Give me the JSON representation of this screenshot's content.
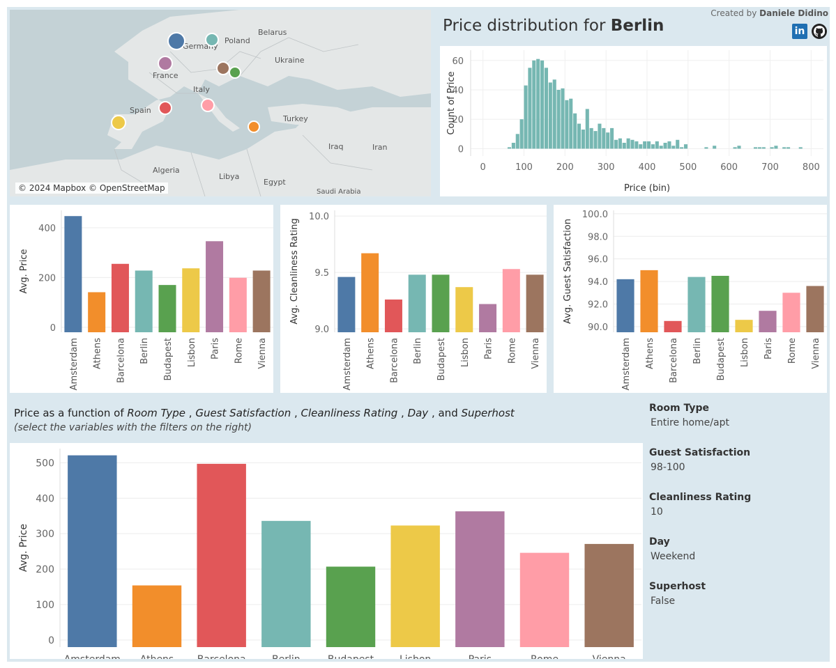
{
  "colors": {
    "Amsterdam": "#4e79a7",
    "Athens": "#f28e2b",
    "Barcelona": "#e15759",
    "Berlin": "#76b7b2",
    "Budapest": "#59a14f",
    "Lisbon": "#edc948",
    "Paris": "#b07aa1",
    "Rome": "#ff9da7",
    "Vienna": "#9c755f",
    "hist": "#76b7b2"
  },
  "map": {
    "attribution": "© 2024 Mapbox © OpenStreetMap",
    "labels": [
      "Poland",
      "Belarus",
      "Ukraine",
      "Germany",
      "France",
      "Italy",
      "Spain",
      "Turkey",
      "Iraq",
      "Iran",
      "Algeria",
      "Libya",
      "Egypt",
      "Saudi Arabia"
    ],
    "markers": [
      {
        "city": "Amsterdam",
        "size": "large"
      },
      {
        "city": "Berlin",
        "size": "medium"
      },
      {
        "city": "Paris",
        "size": "medium"
      },
      {
        "city": "Vienna",
        "size": "medium"
      },
      {
        "city": "Budapest",
        "size": "small"
      },
      {
        "city": "Barcelona",
        "size": "medium"
      },
      {
        "city": "Rome",
        "size": "medium"
      },
      {
        "city": "Lisbon",
        "size": "medium"
      },
      {
        "city": "Athens",
        "size": "small"
      }
    ]
  },
  "header": {
    "title_prefix": "Price distribution for ",
    "title_city": "Berlin",
    "credit_prefix": "Created by ",
    "credit_name": "Daniele Didino",
    "linkedin_icon": "linkedin-icon",
    "github_icon": "github-icon"
  },
  "chart_data": [
    {
      "id": "histogram",
      "type": "bar",
      "xlabel": "Price (bin)",
      "ylabel": "Count of Price",
      "xlim": [
        -30,
        830
      ],
      "ylim": [
        -5,
        67
      ],
      "xticks": [
        0,
        100,
        200,
        300,
        400,
        500,
        600,
        700,
        800
      ],
      "yticks": [
        0,
        20,
        40,
        60
      ],
      "bin_width": 10,
      "bins": [
        {
          "x": 0,
          "y": 0
        },
        {
          "x": 10,
          "y": 0
        },
        {
          "x": 20,
          "y": 0
        },
        {
          "x": 30,
          "y": 0
        },
        {
          "x": 40,
          "y": 0
        },
        {
          "x": 50,
          "y": 0
        },
        {
          "x": 60,
          "y": 1
        },
        {
          "x": 70,
          "y": 4
        },
        {
          "x": 80,
          "y": 10
        },
        {
          "x": 90,
          "y": 20
        },
        {
          "x": 100,
          "y": 43
        },
        {
          "x": 110,
          "y": 55
        },
        {
          "x": 120,
          "y": 60
        },
        {
          "x": 130,
          "y": 61
        },
        {
          "x": 140,
          "y": 60
        },
        {
          "x": 150,
          "y": 55
        },
        {
          "x": 160,
          "y": 45
        },
        {
          "x": 170,
          "y": 47
        },
        {
          "x": 180,
          "y": 40
        },
        {
          "x": 190,
          "y": 41
        },
        {
          "x": 200,
          "y": 33
        },
        {
          "x": 210,
          "y": 34
        },
        {
          "x": 220,
          "y": 24
        },
        {
          "x": 230,
          "y": 17
        },
        {
          "x": 240,
          "y": 13
        },
        {
          "x": 250,
          "y": 27
        },
        {
          "x": 260,
          "y": 14
        },
        {
          "x": 270,
          "y": 12
        },
        {
          "x": 280,
          "y": 17
        },
        {
          "x": 290,
          "y": 14
        },
        {
          "x": 300,
          "y": 11
        },
        {
          "x": 310,
          "y": 14
        },
        {
          "x": 320,
          "y": 6
        },
        {
          "x": 330,
          "y": 7
        },
        {
          "x": 340,
          "y": 4
        },
        {
          "x": 350,
          "y": 7
        },
        {
          "x": 360,
          "y": 6
        },
        {
          "x": 370,
          "y": 5
        },
        {
          "x": 380,
          "y": 3
        },
        {
          "x": 390,
          "y": 5
        },
        {
          "x": 400,
          "y": 5
        },
        {
          "x": 410,
          "y": 3
        },
        {
          "x": 420,
          "y": 5
        },
        {
          "x": 430,
          "y": 2
        },
        {
          "x": 440,
          "y": 4
        },
        {
          "x": 450,
          "y": 5
        },
        {
          "x": 460,
          "y": 2
        },
        {
          "x": 470,
          "y": 6
        },
        {
          "x": 480,
          "y": 1
        },
        {
          "x": 490,
          "y": 3
        },
        {
          "x": 500,
          "y": 0
        },
        {
          "x": 510,
          "y": 0
        },
        {
          "x": 520,
          "y": 0
        },
        {
          "x": 530,
          "y": 0
        },
        {
          "x": 540,
          "y": 1
        },
        {
          "x": 550,
          "y": 0
        },
        {
          "x": 560,
          "y": 2
        },
        {
          "x": 570,
          "y": 0
        },
        {
          "x": 580,
          "y": 0
        },
        {
          "x": 590,
          "y": 0
        },
        {
          "x": 600,
          "y": 0
        },
        {
          "x": 610,
          "y": 1
        },
        {
          "x": 620,
          "y": 2
        },
        {
          "x": 630,
          "y": 0
        },
        {
          "x": 640,
          "y": 0
        },
        {
          "x": 650,
          "y": 0
        },
        {
          "x": 660,
          "y": 1
        },
        {
          "x": 670,
          "y": 1
        },
        {
          "x": 680,
          "y": 1
        },
        {
          "x": 690,
          "y": 0
        },
        {
          "x": 700,
          "y": 1
        },
        {
          "x": 710,
          "y": 2
        },
        {
          "x": 720,
          "y": 0
        },
        {
          "x": 730,
          "y": 1
        },
        {
          "x": 740,
          "y": 1
        },
        {
          "x": 750,
          "y": 0
        },
        {
          "x": 760,
          "y": 0
        },
        {
          "x": 770,
          "y": 1
        }
      ]
    },
    {
      "id": "avg-price",
      "type": "bar",
      "ylabel": "Avg. Price",
      "ylim": [
        -20,
        470
      ],
      "yticks": [
        0,
        200,
        400
      ],
      "categories": [
        "Amsterdam",
        "Athens",
        "Barcelona",
        "Berlin",
        "Budapest",
        "Lisbon",
        "Paris",
        "Rome",
        "Vienna"
      ],
      "values": [
        447,
        141,
        255,
        228,
        170,
        237,
        346,
        199,
        228
      ]
    },
    {
      "id": "avg-cleanliness",
      "type": "bar",
      "ylabel": "Avg. Cleanliness Rating",
      "ylim": [
        8.97,
        10.05
      ],
      "yticks": [
        9.0,
        9.5,
        10.0
      ],
      "tick_decimals": 1,
      "categories": [
        "Amsterdam",
        "Athens",
        "Barcelona",
        "Berlin",
        "Budapest",
        "Lisbon",
        "Paris",
        "Rome",
        "Vienna"
      ],
      "values": [
        9.46,
        9.67,
        9.26,
        9.48,
        9.48,
        9.37,
        9.22,
        9.53,
        9.48
      ]
    },
    {
      "id": "avg-guest-satisfaction",
      "type": "bar",
      "ylabel": "Avg. Guest Satisfaction",
      "ylim": [
        89.5,
        100.3
      ],
      "yticks": [
        90.0,
        92.0,
        94.0,
        96.0,
        98.0,
        100.0
      ],
      "tick_decimals": 1,
      "categories": [
        "Amsterdam",
        "Athens",
        "Barcelona",
        "Berlin",
        "Budapest",
        "Lisbon",
        "Paris",
        "Rome",
        "Vienna"
      ],
      "values": [
        94.2,
        95.0,
        90.5,
        94.4,
        94.5,
        90.6,
        91.4,
        93.0,
        93.6
      ]
    },
    {
      "id": "filtered-price",
      "type": "bar",
      "ylabel": "Avg. Price",
      "ylim": [
        -20,
        540
      ],
      "yticks": [
        0,
        100,
        200,
        300,
        400,
        500
      ],
      "categories": [
        "Amsterdam",
        "Athens",
        "Barcelona",
        "Berlin",
        "Budapest",
        "Lisbon",
        "Paris",
        "Rome",
        "Vienna"
      ],
      "values": [
        521,
        154,
        497,
        336,
        207,
        323,
        363,
        246,
        271
      ]
    }
  ],
  "section": {
    "heading_prefix": "Price as a function of ",
    "vars": [
      "Room Type",
      "Guest Satisfaction",
      "Cleanliness Rating",
      "Day",
      "Superhost"
    ],
    "sep": " , ",
    "sep_last": " , and ",
    "subtitle": "(select the variables with the filters on the right)"
  },
  "filters": [
    {
      "label": "Room Type",
      "value": "Entire home/apt"
    },
    {
      "label": "Guest Satisfaction",
      "value": "98-100"
    },
    {
      "label": "Cleanliness Rating",
      "value": "10"
    },
    {
      "label": "Day",
      "value": "Weekend"
    },
    {
      "label": "Superhost",
      "value": "False"
    }
  ]
}
